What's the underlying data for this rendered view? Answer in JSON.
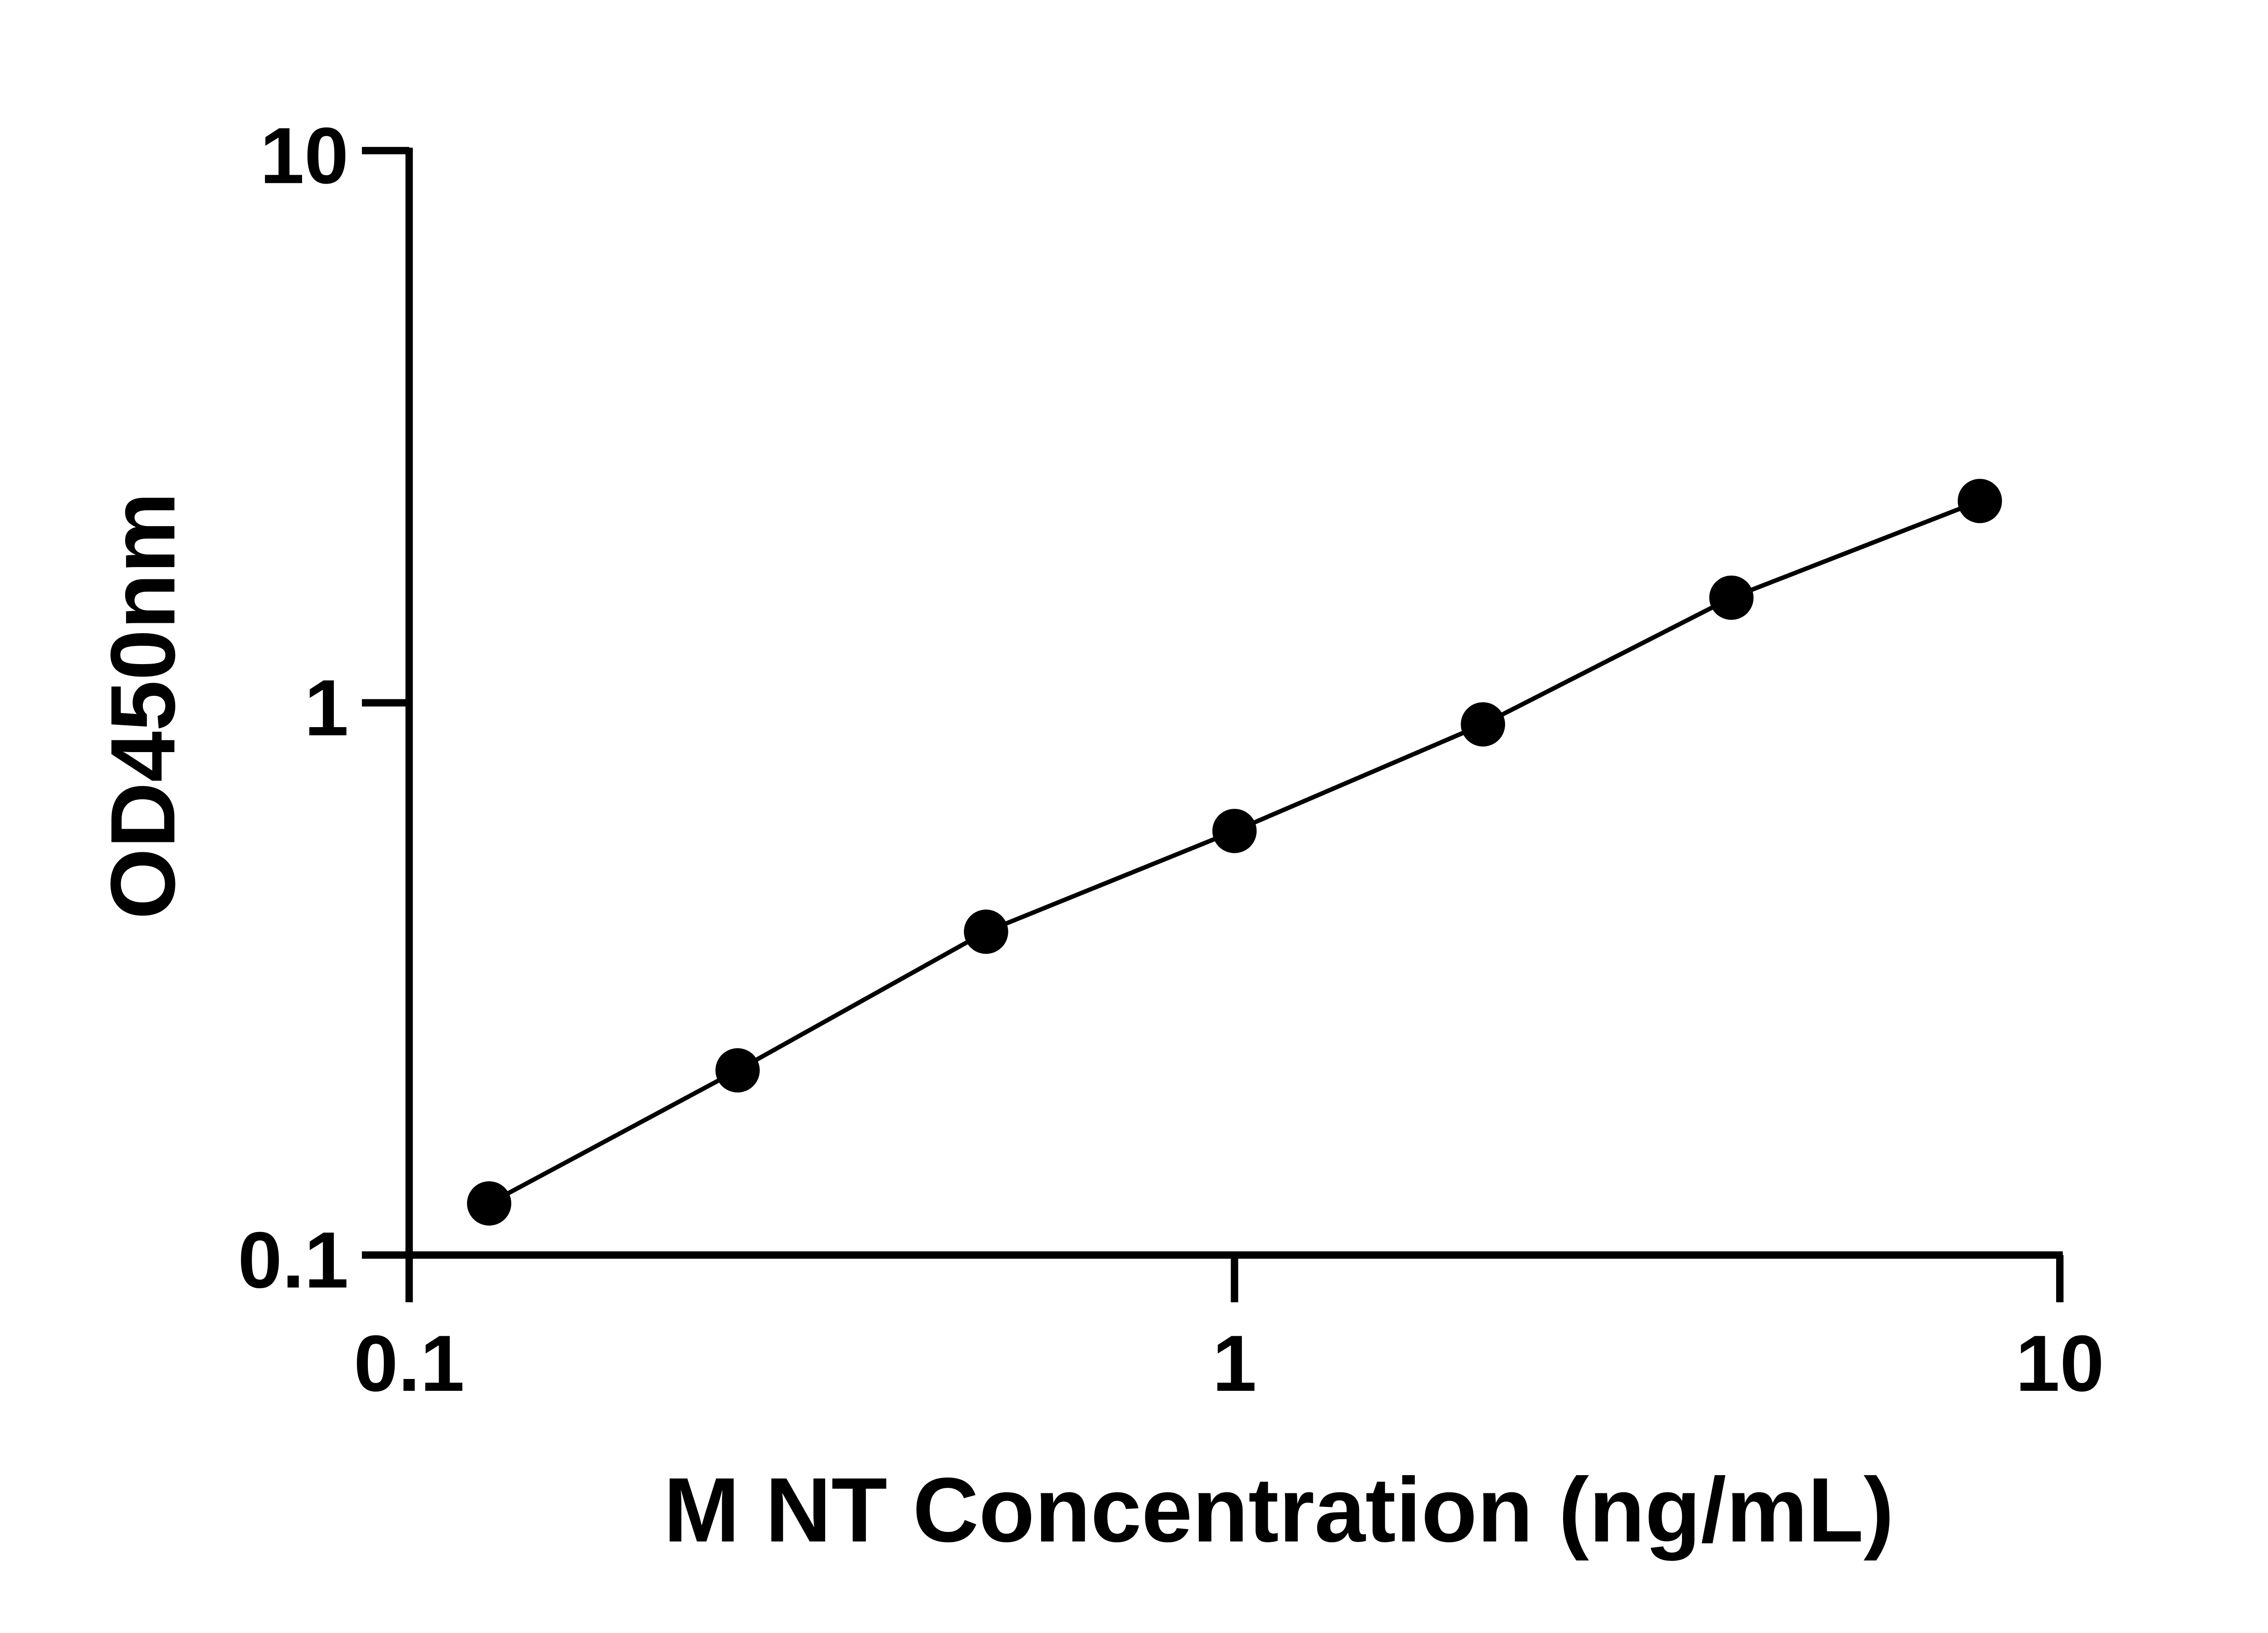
{
  "chart_data": {
    "type": "line",
    "title": "",
    "xlabel": "M NT Concentration (ng/mL)",
    "ylabel": "OD450nm",
    "xscale": "log",
    "yscale": "log",
    "xlim": [
      0.1,
      10
    ],
    "ylim": [
      0.1,
      10
    ],
    "xticks": [
      "0.1",
      "1",
      "10"
    ],
    "yticks": [
      "0.1",
      "1",
      "10"
    ],
    "grid": false,
    "series": [
      {
        "x": [
          0.125,
          0.25,
          0.5,
          1,
          2,
          4,
          8
        ],
        "y": [
          0.124,
          0.216,
          0.385,
          0.586,
          0.914,
          1.55,
          2.32
        ],
        "color": "#000000",
        "marker": "circle"
      }
    ]
  }
}
